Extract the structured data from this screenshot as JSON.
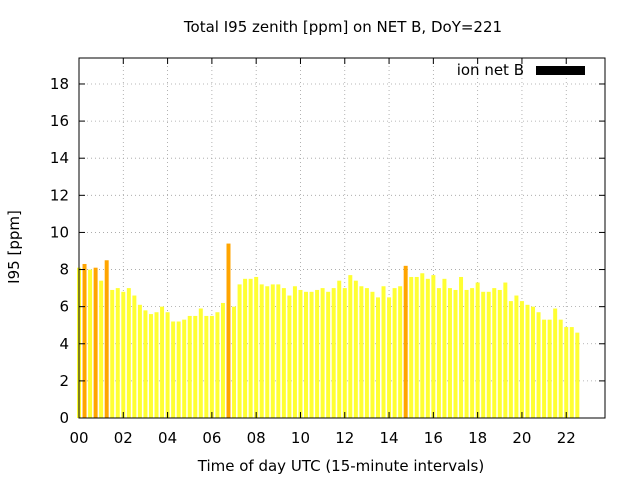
{
  "chart_data": {
    "type": "bar",
    "title": "Total I95 zenith [ppm] on NET B, DoY=221",
    "xlabel": "Time of day UTC (15-minute intervals)",
    "ylabel": "I95 [ppm]",
    "xlim": [
      0,
      23.75
    ],
    "ylim": [
      0,
      19.4
    ],
    "x_ticks": [
      "00",
      "02",
      "04",
      "06",
      "08",
      "10",
      "12",
      "14",
      "16",
      "18",
      "20",
      "22"
    ],
    "y_ticks": [
      "0",
      "2",
      "4",
      "6",
      "8",
      "10",
      "12",
      "14",
      "16",
      "18"
    ],
    "grid": true,
    "legend": {
      "position": "top-right",
      "entries": [
        {
          "label": "ion net B",
          "color": "#000000"
        }
      ]
    },
    "bar_interval_hours": 0.25,
    "series": [
      {
        "values": [
          8.1,
          8.3,
          8.0,
          8.1,
          7.4,
          8.5,
          6.9,
          7.0,
          6.8,
          7.0,
          6.6,
          6.1,
          5.8,
          5.6,
          5.7,
          6.0,
          5.7,
          5.2,
          5.2,
          5.3,
          5.5,
          5.5,
          5.9,
          5.5,
          5.5,
          5.7,
          6.2,
          9.4,
          6.0,
          7.2,
          7.5,
          7.5,
          7.6,
          7.2,
          7.1,
          7.2,
          7.2,
          7.0,
          6.6,
          7.1,
          6.9,
          6.8,
          6.8,
          6.9,
          7.0,
          6.8,
          7.0,
          7.4,
          7.0,
          7.7,
          7.4,
          7.1,
          7.0,
          6.8,
          6.5,
          7.1,
          6.5,
          7.0,
          7.1,
          8.2,
          7.6,
          7.6,
          7.8,
          7.5,
          7.7,
          7.0,
          7.5,
          7.0,
          6.9,
          7.6,
          6.9,
          7.0,
          7.3,
          6.8,
          6.8,
          7.0,
          6.9,
          7.3,
          6.3,
          6.6,
          6.3,
          6.1,
          6.0,
          5.7,
          5.3,
          5.3,
          5.9,
          5.3,
          4.9,
          4.9,
          4.6
        ],
        "flagged": [
          1,
          3,
          5,
          27,
          59
        ],
        "color": "#ffff33",
        "flagged_color": "#ffa500"
      }
    ]
  }
}
